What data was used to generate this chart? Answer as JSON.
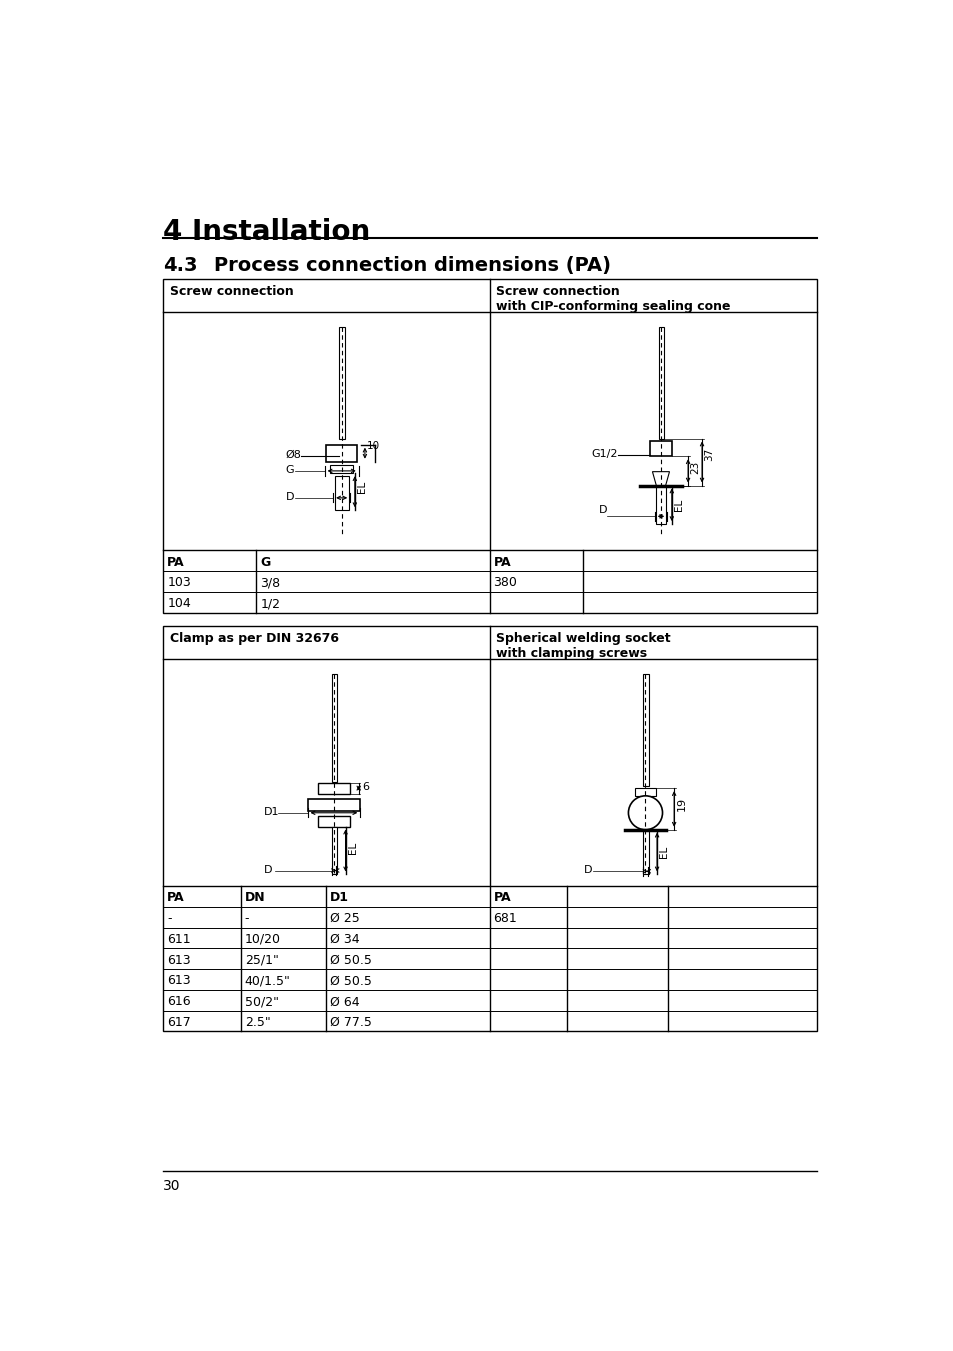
{
  "title_main": "4 Installation",
  "title_section": "4.3",
  "title_section_text": "Process connection dimensions (PA)",
  "bg_color": "#ffffff",
  "text_color": "#000000",
  "table1_header_left": "Screw connection",
  "table1_header_right": "Screw connection\nwith CIP-conforming sealing cone",
  "table1_rows": [
    [
      "PA",
      "G",
      "PA",
      ""
    ],
    [
      "103",
      "3/8",
      "380",
      ""
    ],
    [
      "104",
      "1/2",
      "",
      ""
    ]
  ],
  "table2_header_left": "Clamp as per DIN 32676",
  "table2_header_right": "Spherical welding socket\nwith clamping screws",
  "table2_rows": [
    [
      "PA",
      "DN",
      "D1",
      "PA",
      "",
      ""
    ],
    [
      "-",
      "-",
      "Ø 25",
      "681",
      "",
      ""
    ],
    [
      "611",
      "10/20",
      "Ø 34",
      "",
      "",
      ""
    ],
    [
      "613",
      "25/1\"",
      "Ø 50.5",
      "",
      "",
      ""
    ],
    [
      "613",
      "40/1.5\"",
      "Ø 50.5",
      "",
      "",
      ""
    ],
    [
      "616",
      "50/2\"",
      "Ø 64",
      "",
      "",
      ""
    ],
    [
      "617",
      "2.5\"",
      "Ø 77.5",
      "",
      "",
      ""
    ]
  ],
  "page_number": "30"
}
